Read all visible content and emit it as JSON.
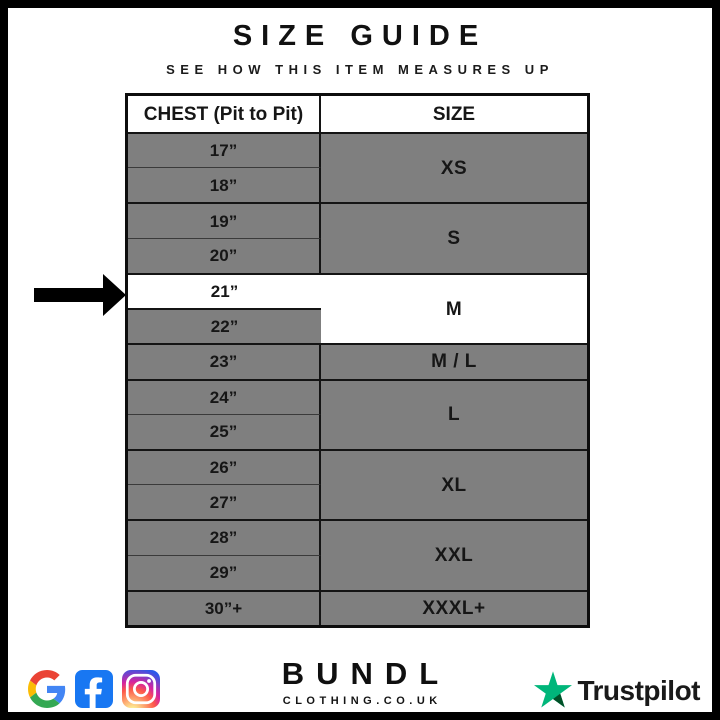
{
  "header": {
    "title": "SIZE GUIDE",
    "subtitle": "SEE HOW THIS ITEM MEASURES UP"
  },
  "table": {
    "columns": [
      "CHEST (Pit to Pit)",
      "SIZE"
    ],
    "groups": [
      {
        "size": "XS",
        "chest": [
          "17”",
          "18”"
        ],
        "highlight": false
      },
      {
        "size": "S",
        "chest": [
          "19”",
          "20”"
        ],
        "highlight": false
      },
      {
        "size": "M",
        "chest": [
          "21”",
          "22”"
        ],
        "highlight": true
      },
      {
        "size": "M / L",
        "chest": [
          "23”"
        ],
        "highlight": false
      },
      {
        "size": "L",
        "chest": [
          "24”",
          "25”"
        ],
        "highlight": false
      },
      {
        "size": "XL",
        "chest": [
          "26”",
          "27”"
        ],
        "highlight": false
      },
      {
        "size": "XXL",
        "chest": [
          "28”",
          "29”"
        ],
        "highlight": false
      },
      {
        "size": "XXXL+",
        "chest": [
          "30”+"
        ],
        "highlight": false
      }
    ],
    "highlighted_chest": "21”",
    "highlighted_size": "M",
    "colors": {
      "cell_gray": "#7f7f7f",
      "highlight_white": "#ffffff",
      "line": "#141414"
    }
  },
  "annotation": {
    "arrow_points_to": "21” / M"
  },
  "footer": {
    "brand": {
      "name": "BUNDL",
      "domain": "CLOTHING.CO.UK"
    },
    "social_icons": [
      "google",
      "facebook",
      "instagram"
    ],
    "trustpilot": {
      "label": "Trustpilot",
      "star_color": "#00B67A",
      "star_shadow_color": "#005128"
    }
  }
}
